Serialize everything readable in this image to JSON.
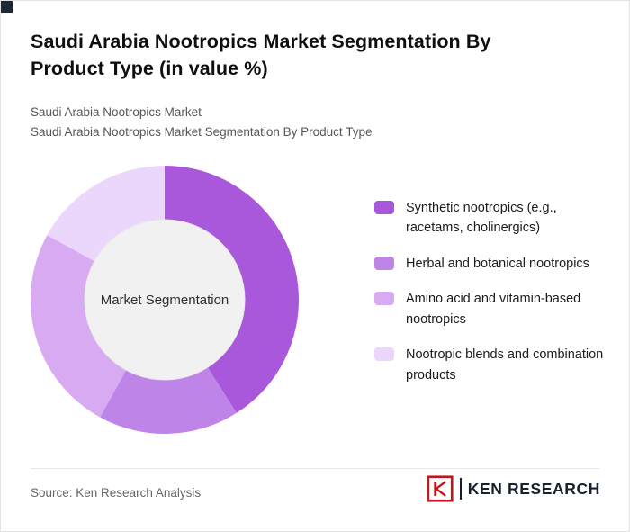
{
  "page": {
    "title": "Saudi Arabia Nootropics Market Segmentation By Product Type (in value %)",
    "subtitle_line1": "Saudi Arabia Nootropics Market",
    "subtitle_line2": "Saudi Arabia Nootropics Market Segmentation By Product Type"
  },
  "chart_data": {
    "type": "pie",
    "variant": "donut",
    "title": "Saudi Arabia Nootropics Market Segmentation By Product Type (in value %)",
    "center_label": "Market Segmentation",
    "unit": "value %",
    "legend_position": "right",
    "center_fill": "#f1f1f2",
    "segments": [
      {
        "label": "Synthetic nootropics (e.g., racetams, cholinergics)",
        "value": 41,
        "color": "#a958dc"
      },
      {
        "label": "Herbal and botanical nootropics",
        "value": 17,
        "color": "#bf84e8"
      },
      {
        "label": "Amino acid and vitamin-based nootropics",
        "value": 25,
        "color": "#d7aaf2"
      },
      {
        "label": "Nootropic blends and combination products",
        "value": 17,
        "color": "#ebd7fb"
      }
    ]
  },
  "footer": {
    "source": "Source: Ken Research Analysis",
    "brand": "KEN RESEARCH",
    "brand_color": "#c0161d"
  }
}
